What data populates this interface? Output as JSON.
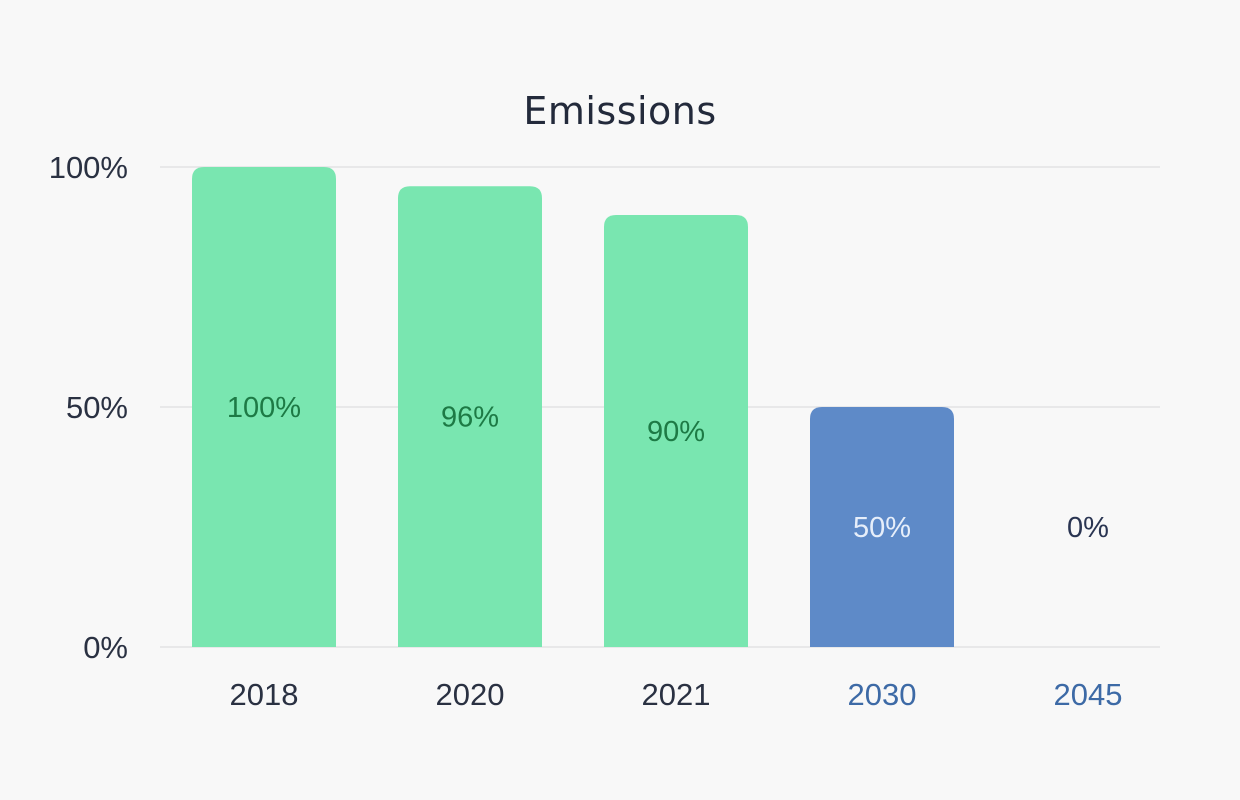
{
  "chart_data": {
    "type": "bar",
    "title": "Emissions",
    "xlabel": "",
    "ylabel": "",
    "categories": [
      "2018",
      "2020",
      "2021",
      "2030",
      "2045"
    ],
    "values": [
      100,
      96,
      90,
      50,
      0
    ],
    "value_labels": [
      "100%",
      "96%",
      "90%",
      "50%",
      "0%"
    ],
    "kind": [
      "actual",
      "actual",
      "actual",
      "target",
      "target"
    ],
    "ylim": [
      0,
      100
    ],
    "yticks": [
      0,
      50,
      100
    ],
    "ytick_labels": [
      "0%",
      "50%",
      "100%"
    ],
    "grid": true,
    "legend": "none"
  },
  "colors": {
    "background": "#f8f8f8",
    "actual_bar": "#79e6b0",
    "target_bar": "#5e8ac8",
    "actual_label": "#1d7a45",
    "target_label_on_bar": "#e6eefa",
    "target_label_empty": "#2a3552",
    "actual_tick": "#2a3142",
    "target_tick": "#3d6aa6",
    "text_dark": "#232a3b"
  }
}
